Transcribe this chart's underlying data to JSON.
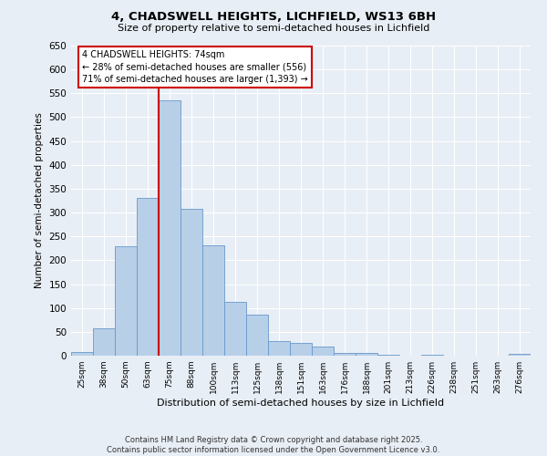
{
  "title_line1": "4, CHADSWELL HEIGHTS, LICHFIELD, WS13 6BH",
  "title_line2": "Size of property relative to semi-detached houses in Lichfield",
  "xlabel": "Distribution of semi-detached houses by size in Lichfield",
  "ylabel": "Number of semi-detached properties",
  "categories": [
    "25sqm",
    "38sqm",
    "50sqm",
    "63sqm",
    "75sqm",
    "88sqm",
    "100sqm",
    "113sqm",
    "125sqm",
    "138sqm",
    "151sqm",
    "163sqm",
    "176sqm",
    "188sqm",
    "201sqm",
    "213sqm",
    "226sqm",
    "238sqm",
    "251sqm",
    "263sqm",
    "276sqm"
  ],
  "values": [
    8,
    58,
    230,
    330,
    536,
    308,
    232,
    113,
    86,
    30,
    26,
    19,
    5,
    5,
    2,
    0,
    1,
    0,
    0,
    0,
    3
  ],
  "bar_color": "#b8cfe8",
  "bar_edge_color": "#6699cc",
  "vline_index": 4,
  "vline_color": "#cc0000",
  "annotation_title": "4 CHADSWELL HEIGHTS: 74sqm",
  "annotation_line1": "← 28% of semi-detached houses are smaller (556)",
  "annotation_line2": "71% of semi-detached houses are larger (1,393) →",
  "annotation_box_color": "#cc0000",
  "annotation_text_color": "#000000",
  "annotation_bg_color": "#ffffff",
  "ylim": [
    0,
    650
  ],
  "yticks": [
    0,
    50,
    100,
    150,
    200,
    250,
    300,
    350,
    400,
    450,
    500,
    550,
    600,
    650
  ],
  "bg_color": "#e8eef5",
  "plot_bg_color": "#e8eef5",
  "grid_color": "#ffffff",
  "footer_line1": "Contains HM Land Registry data © Crown copyright and database right 2025.",
  "footer_line2": "Contains public sector information licensed under the Open Government Licence v3.0."
}
